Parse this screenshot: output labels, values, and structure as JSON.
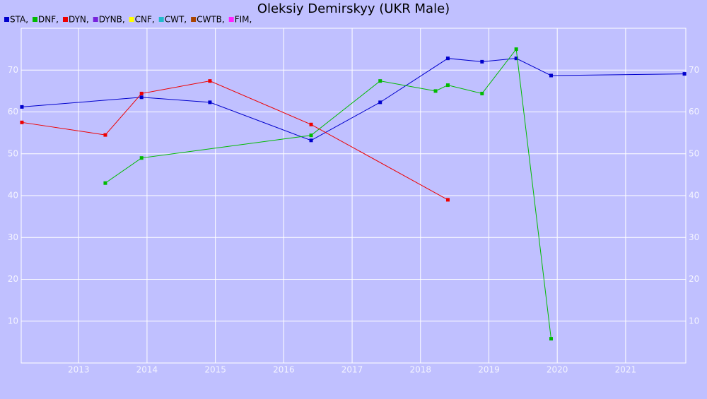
{
  "chart_data": {
    "type": "line",
    "title": "Oleksiy Demirskyy (UKR Male)",
    "xlim": [
      2012.16,
      2021.88
    ],
    "xticks": [
      2013,
      2014,
      2015,
      2016,
      2017,
      2018,
      2019,
      2020,
      2021
    ],
    "ylim": [
      0,
      80
    ],
    "yticks": [
      10,
      20,
      30,
      40,
      50,
      60,
      70
    ],
    "grid": true,
    "series": [
      {
        "name": "STA,",
        "color": "#0000cc",
        "x": [
          2012.17,
          2013.92,
          2014.92,
          2016.4,
          2017.41,
          2018.4,
          2018.9,
          2019.4,
          2019.91,
          2021.86
        ],
        "values": [
          61.2,
          63.5,
          62.3,
          53.2,
          62.3,
          72.8,
          72,
          72.8,
          68.7,
          69.1
        ]
      },
      {
        "name": "DNF,",
        "color": "#00bb00",
        "x": [
          2013.39,
          2013.92,
          2016.4,
          2017.41,
          2018.22,
          2018.4,
          2018.9,
          2019.4,
          2019.91
        ],
        "values": [
          43,
          49,
          54.4,
          67.4,
          65,
          66.4,
          64.4,
          75,
          5.8
        ]
      },
      {
        "name": "DYN,",
        "color": "#ee0000",
        "x": [
          2012.17,
          2013.39,
          2013.92,
          2014.92,
          2016.4,
          2018.4
        ],
        "values": [
          57.5,
          54.5,
          64.4,
          67.4,
          57,
          39
        ]
      },
      {
        "name": "DYNB,",
        "color": "#7722dd",
        "x": [],
        "values": []
      },
      {
        "name": "CNF,",
        "color": "#ffff00",
        "x": [],
        "values": []
      },
      {
        "name": "CWT,",
        "color": "#22bbcc",
        "x": [],
        "values": []
      },
      {
        "name": "CWTB,",
        "color": "#aa4400",
        "x": [],
        "values": []
      },
      {
        "name": "FIM,",
        "color": "#ff22ff",
        "x": [],
        "values": []
      }
    ]
  }
}
